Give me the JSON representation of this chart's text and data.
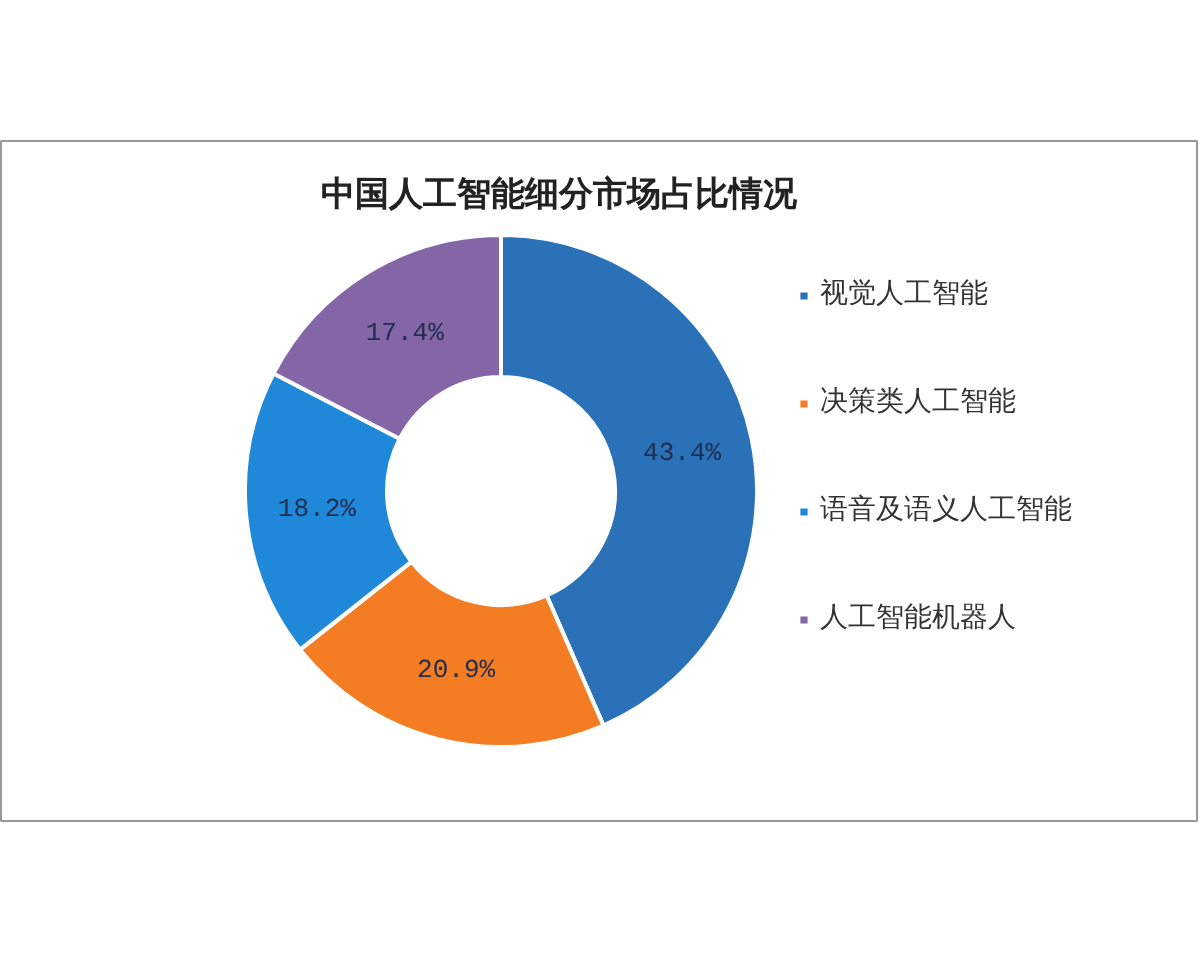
{
  "chart_data": {
    "type": "donut",
    "title": "中国人工智能细分市场占比情况",
    "categories": [
      "视觉人工智能",
      "决策类人工智能",
      "语音及语义人工智能",
      "人工智能机器人"
    ],
    "values": [
      43.4,
      20.9,
      18.2,
      17.4
    ],
    "colors": [
      "#2a71b8",
      "#f47c22",
      "#2088d8",
      "#8466a6"
    ],
    "value_labels": [
      "43.4%",
      "20.9%",
      "18.2%",
      "17.4%"
    ],
    "legend": "right"
  }
}
